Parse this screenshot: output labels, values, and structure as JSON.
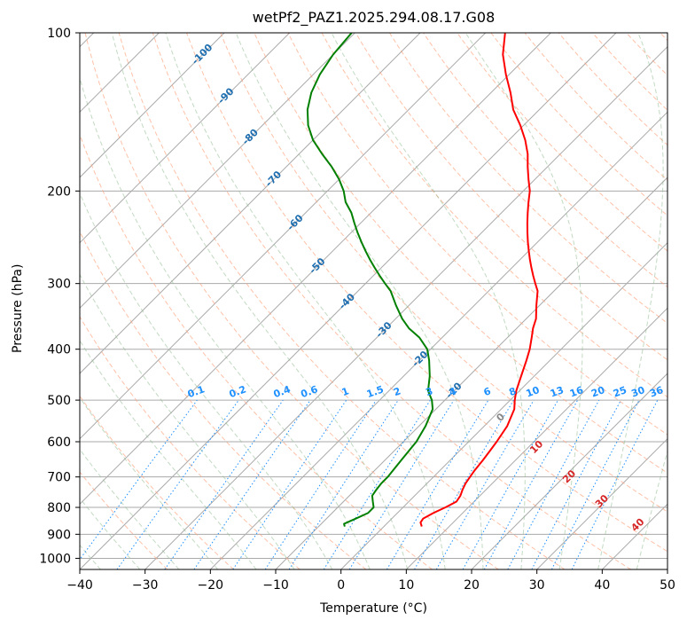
{
  "chart_data": {
    "type": "line",
    "title": "wetPf2_PAZ1.2025.294.08.17.G08",
    "xlabel": "Temperature (°C)",
    "ylabel": "Pressure (hPa)",
    "xlim": [
      -40,
      50
    ],
    "ylim": [
      1050,
      100
    ],
    "y_scale": "log",
    "x_ticks": [
      -40,
      -30,
      -20,
      -10,
      0,
      10,
      20,
      30,
      40,
      50
    ],
    "y_ticks": [
      100,
      200,
      300,
      400,
      500,
      600,
      700,
      800,
      900,
      1000
    ],
    "grid": true,
    "skew": 45,
    "series": [
      {
        "color": "#ff0000",
        "role": "temperature",
        "pressure": [
          870,
          855,
          840,
          820,
          800,
          780,
          760,
          740,
          720,
          700,
          680,
          650,
          620,
          600,
          560,
          520,
          500,
          480,
          450,
          420,
          400,
          380,
          365,
          350,
          330,
          310,
          300,
          290,
          280,
          270,
          260,
          250,
          240,
          230,
          220,
          210,
          200,
          190,
          180,
          170,
          160,
          150,
          140,
          130,
          120,
          110,
          100
        ],
        "temperature": [
          5.8,
          5.0,
          4.8,
          5.5,
          6.5,
          7.3,
          7.0,
          6.4,
          5.9,
          5.6,
          5.3,
          5.0,
          4.6,
          4.3,
          3.5,
          2.0,
          0.7,
          -0.5,
          -2.0,
          -3.6,
          -4.8,
          -6.3,
          -7.5,
          -8.5,
          -10.5,
          -12.5,
          -14.0,
          -15.5,
          -17.0,
          -18.5,
          -20.0,
          -21.5,
          -23.0,
          -24.5,
          -26.0,
          -27.5,
          -29.0,
          -31.0,
          -33.0,
          -35.0,
          -37.5,
          -40.5,
          -44.0,
          -47.0,
          -50.5,
          -54.0,
          -57.0
        ]
      },
      {
        "color": "#008000",
        "role": "dewpoint",
        "pressure": [
          870,
          860,
          850,
          840,
          820,
          800,
          780,
          760,
          740,
          720,
          700,
          680,
          650,
          620,
          600,
          560,
          520,
          500,
          480,
          450,
          420,
          400,
          380,
          365,
          350,
          330,
          310,
          300,
          290,
          280,
          270,
          260,
          250,
          240,
          230,
          220,
          210,
          200,
          190,
          180,
          170,
          160,
          150,
          140,
          130,
          120,
          110,
          100
        ],
        "temperature": [
          -6.0,
          -6.5,
          -6.0,
          -5.5,
          -4.5,
          -4.5,
          -5.5,
          -6.5,
          -6.8,
          -7.0,
          -7.0,
          -7.2,
          -7.5,
          -7.8,
          -8.0,
          -9.0,
          -10.5,
          -12.0,
          -14.0,
          -16.0,
          -18.5,
          -20.5,
          -23.5,
          -26.5,
          -29.0,
          -32.0,
          -35.0,
          -37.0,
          -39.0,
          -41.0,
          -43.0,
          -45.0,
          -47.0,
          -49.0,
          -51.0,
          -53.0,
          -55.5,
          -57.5,
          -60.0,
          -63.0,
          -66.5,
          -70.0,
          -73.0,
          -75.5,
          -77.5,
          -79.0,
          -80.0,
          -80.5
        ]
      }
    ],
    "isotherm_labels": [
      {
        "t": -100,
        "p": 110
      },
      {
        "t": -90,
        "p": 132
      },
      {
        "t": -80,
        "p": 158
      },
      {
        "t": -70,
        "p": 190
      },
      {
        "t": -60,
        "p": 230
      },
      {
        "t": -50,
        "p": 278
      },
      {
        "t": -40,
        "p": 325
      },
      {
        "t": -30,
        "p": 368
      },
      {
        "t": -20,
        "p": 418
      },
      {
        "t": -10,
        "p": 480
      }
    ],
    "mixing_ratio_labels": [
      "0.1",
      "0.2",
      "0.4",
      "0.6",
      "1",
      "1.5",
      "2",
      "3",
      "4",
      "6",
      "8",
      "10",
      "13",
      "16",
      "20",
      "25",
      "30",
      "36"
    ],
    "mixing_ratio_values": [
      0.1,
      0.2,
      0.4,
      0.6,
      1,
      1.5,
      2,
      3,
      4,
      6,
      8,
      10,
      13,
      16,
      20,
      25,
      30,
      36
    ],
    "moist_adiabat_labels": [
      "0",
      "10",
      "20",
      "30",
      "40"
    ],
    "moist_adiabat_values": [
      0,
      10,
      20,
      30,
      40
    ],
    "colors": {
      "isotherm": "#aaaaaa",
      "dry_adiabat": "#ffa07a",
      "moist_adiabat": "#8fbc8f",
      "mixing_ratio": "#1e90ff",
      "isotherm_label": "#1f6fb0",
      "mixing_ratio_label": "#1e90ff",
      "moist_label_first": "#888888",
      "moist_label": "#d62728"
    }
  }
}
